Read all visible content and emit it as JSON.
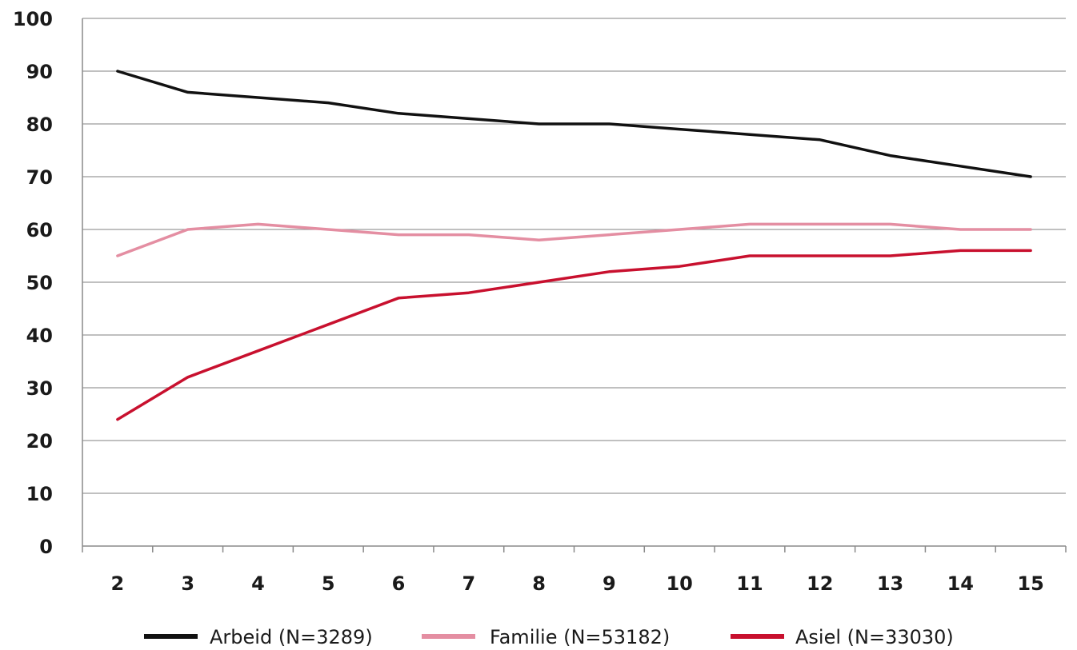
{
  "chart_data": {
    "type": "line",
    "title": "",
    "xlabel": "",
    "ylabel": "",
    "x": [
      2,
      3,
      4,
      5,
      6,
      7,
      8,
      9,
      10,
      11,
      12,
      13,
      14,
      15
    ],
    "ylim": [
      0,
      100
    ],
    "yticks": [
      0,
      10,
      20,
      30,
      40,
      50,
      60,
      70,
      80,
      90,
      100
    ],
    "grid": "horizontal",
    "legend_position": "bottom",
    "series": [
      {
        "name": "Arbeid (N=3289)",
        "color": "#111111",
        "values": [
          90,
          86,
          85,
          84,
          82,
          81,
          80,
          80,
          79,
          78,
          77,
          74,
          72,
          70
        ]
      },
      {
        "name": "Familie (N=53182)",
        "color": "#e48ea2",
        "values": [
          55,
          60,
          61,
          60,
          59,
          59,
          58,
          59,
          60,
          61,
          61,
          61,
          60,
          60
        ]
      },
      {
        "name": "Asiel (N=33030)",
        "color": "#c8102e",
        "values": [
          24,
          32,
          37,
          42,
          47,
          48,
          50,
          52,
          53,
          55,
          55,
          55,
          56,
          56
        ]
      }
    ]
  }
}
